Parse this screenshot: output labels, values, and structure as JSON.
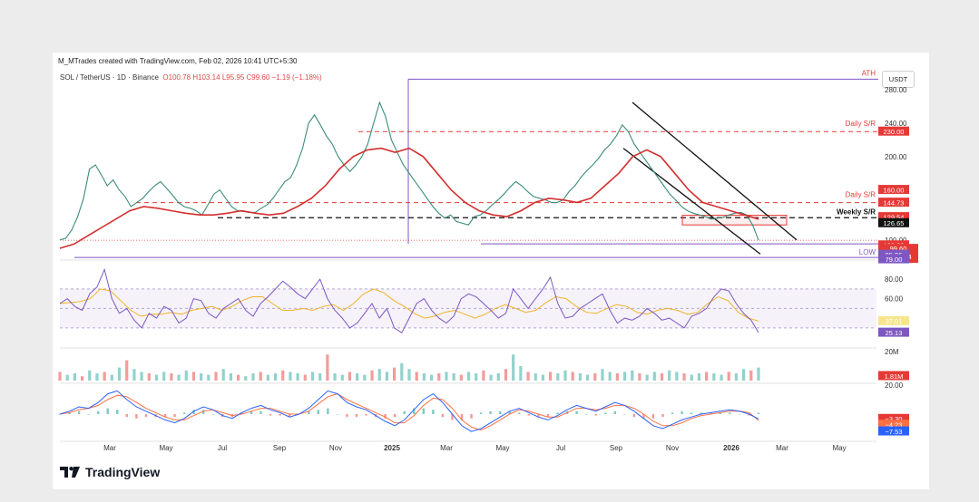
{
  "header": {
    "text": "M_MTrades created with TradingView.com, Feb 02, 2026 10:41 UTC+5:30"
  },
  "legend": {
    "symbol": "SOL / TetherUS · 1D · Binance",
    "open": "O100.78",
    "high": "H103.14",
    "low": "L95.95",
    "close": "C99.60",
    "change": "−1.19 (−1.18%)"
  },
  "currency": "USDT",
  "brand": {
    "name": "TradingView"
  },
  "colors": {
    "red": "#e53935",
    "purple": "#7e57c2",
    "ma": "#d32f2f",
    "dark": "#111111"
  },
  "chart_data": [
    {
      "type": "line",
      "title": "SOL / TetherUS · 1D · Binance",
      "x_labels": [
        "Mar",
        "May",
        "Jul",
        "Sep",
        "Nov",
        "2025",
        "Mar",
        "May",
        "Jul",
        "Sep",
        "Nov",
        "2026",
        "Mar",
        "May"
      ],
      "y_ticks": [
        280,
        240,
        200,
        100
      ],
      "y_tick_labels": [
        "280.00",
        "240.00",
        "200.00",
        "100.00"
      ],
      "ylim": [
        78,
        290
      ],
      "series": [
        {
          "values": [
            100,
            102,
            112,
            128,
            150,
            185,
            190,
            178,
            165,
            172,
            160,
            152,
            140,
            145,
            150,
            158,
            165,
            170,
            162,
            154,
            145,
            140,
            138,
            135,
            130,
            142,
            155,
            160,
            150,
            140,
            135,
            134,
            133,
            133,
            138,
            142,
            150,
            160,
            170,
            175,
            190,
            210,
            240,
            250,
            238,
            225,
            215,
            200,
            190,
            182,
            190,
            200,
            215,
            240,
            265,
            248,
            220,
            205,
            190,
            180,
            170,
            160,
            150,
            140,
            132,
            126,
            130,
            122,
            120,
            118,
            128,
            130,
            135,
            142,
            148,
            155,
            163,
            170,
            165,
            158,
            152,
            150,
            148,
            145,
            145,
            148,
            158,
            165,
            175,
            183,
            190,
            198,
            208,
            215,
            225,
            238,
            230,
            215,
            205,
            195,
            185,
            175,
            165,
            155,
            148,
            140,
            135,
            132,
            130,
            128,
            125,
            126,
            127,
            130,
            132,
            133,
            130,
            118,
            99.6
          ]
        },
        {
          "name": "MA",
          "values": [
            90,
            95,
            105,
            115,
            125,
            135,
            140,
            138,
            135,
            132,
            130,
            130,
            132,
            135,
            132,
            130,
            132,
            140,
            150,
            165,
            185,
            200,
            208,
            210,
            205,
            210,
            200,
            180,
            160,
            145,
            135,
            130,
            128,
            135,
            145,
            150,
            148,
            145,
            150,
            165,
            180,
            200,
            208,
            200,
            180,
            160,
            145,
            140,
            135,
            130,
            125
          ]
        }
      ],
      "levels": [
        {
          "label": "ATH",
          "value": 292.8
        },
        {
          "label": "Daily S/R",
          "value": 230.0
        },
        {
          "label": "Daily S/R",
          "value": 144.73
        },
        {
          "label": "Weekly S/R",
          "value": 126.65
        },
        {
          "label": "LOW",
          "value": 79.0
        }
      ],
      "price_badges": [
        "230.00",
        "160.00",
        "144.73",
        "129.54",
        "126.65",
        "100.00",
        "99.60",
        "18:48:04",
        "95.26",
        "79.00"
      ]
    },
    {
      "type": "line",
      "name": "RSI",
      "y_ticks": [
        80,
        60
      ],
      "y_tick_labels": [
        "80.00",
        "60.00"
      ],
      "ylim": [
        15,
        95
      ],
      "series": [
        {
          "values": [
            55,
            60,
            52,
            48,
            65,
            72,
            90,
            60,
            45,
            50,
            38,
            30,
            45,
            40,
            52,
            48,
            35,
            40,
            60,
            58,
            45,
            40,
            50,
            55,
            60,
            48,
            42,
            55,
            62,
            70,
            78,
            72,
            65,
            60,
            70,
            80,
            60,
            48,
            40,
            30,
            35,
            45,
            55,
            40,
            50,
            30,
            25,
            40,
            55,
            60,
            48,
            40,
            35,
            42,
            60,
            65,
            62,
            55,
            48,
            40,
            45,
            70,
            60,
            50,
            60,
            70,
            82,
            55,
            40,
            42,
            50,
            55,
            60,
            65,
            48,
            35,
            40,
            38,
            42,
            50,
            45,
            38,
            40,
            35,
            30,
            42,
            45,
            50,
            62,
            70,
            68,
            55,
            45,
            38,
            25.13
          ]
        },
        {
          "values": [
            55,
            56,
            57,
            60,
            70,
            68,
            58,
            48,
            42,
            44,
            44,
            46,
            44,
            48,
            50,
            52,
            48,
            52,
            58,
            62,
            62,
            55,
            48,
            48,
            50,
            48,
            52,
            54,
            48,
            55,
            65,
            70,
            66,
            58,
            52,
            45,
            40,
            42,
            46,
            48,
            44,
            40,
            44,
            50,
            54,
            50,
            46,
            48,
            56,
            62,
            60,
            52,
            46,
            45,
            50,
            54,
            52,
            46,
            44,
            48,
            50,
            48,
            44,
            46,
            55,
            62,
            58,
            46,
            40,
            37.01
          ]
        }
      ],
      "badges": [
        "37.01",
        "25.13"
      ]
    },
    {
      "type": "bar",
      "name": "Volume",
      "y_ticks": [
        20
      ],
      "y_tick_labels": [
        "20M"
      ],
      "values": [
        6,
        4,
        5,
        3,
        7,
        5,
        6,
        4,
        9,
        14,
        8,
        6,
        5,
        4,
        6,
        5,
        4,
        7,
        6,
        5,
        4,
        6,
        8,
        5,
        4,
        3,
        5,
        6,
        4,
        5,
        7,
        6,
        5,
        4,
        6,
        5,
        18,
        5,
        4,
        6,
        5,
        4,
        7,
        8,
        6,
        9,
        12,
        8,
        6,
        5,
        4,
        5,
        6,
        5,
        4,
        6,
        5,
        7,
        4,
        5,
        8,
        18,
        10,
        6,
        5,
        4,
        6,
        5,
        7,
        6,
        5,
        4,
        5,
        8,
        6,
        5,
        6,
        7,
        5,
        4,
        6,
        5,
        7,
        6,
        5,
        4,
        5,
        6,
        5,
        4,
        6,
        5,
        8,
        7,
        9
      ],
      "badge": "1.81M"
    },
    {
      "type": "line",
      "name": "MACD",
      "y_ticks": [
        20
      ],
      "y_tick_labels": [
        "20.00"
      ],
      "series": [
        {
          "values": [
            0,
            2,
            5,
            4,
            8,
            14,
            16,
            10,
            5,
            2,
            -1,
            -4,
            -6,
            -3,
            2,
            5,
            3,
            -1,
            -3,
            1,
            4,
            6,
            3,
            1,
            -2,
            0,
            4,
            10,
            16,
            14,
            8,
            5,
            3,
            -1,
            -5,
            -8,
            -4,
            3,
            10,
            14,
            8,
            0,
            -8,
            -12,
            -10,
            -6,
            -2,
            2,
            4,
            1,
            -2,
            -4,
            -1,
            3,
            6,
            4,
            2,
            5,
            8,
            6,
            2,
            -3,
            -8,
            -10,
            -7,
            -4,
            -2,
            0,
            1,
            2,
            3,
            2,
            0,
            -3.3
          ]
        },
        {
          "values": [
            0,
            1,
            3,
            4,
            6,
            10,
            13,
            12,
            8,
            4,
            1,
            -2,
            -4,
            -4,
            -1,
            2,
            3,
            1,
            -1,
            0,
            2,
            4,
            4,
            2,
            0,
            0,
            2,
            7,
            12,
            14,
            10,
            7,
            4,
            1,
            -2,
            -6,
            -6,
            -1,
            6,
            11,
            10,
            4,
            -4,
            -9,
            -11,
            -8,
            -4,
            0,
            3,
            2,
            0,
            -2,
            -2,
            1,
            4,
            4,
            3,
            4,
            6,
            6,
            4,
            0,
            -5,
            -8,
            -8,
            -6,
            -3,
            -1,
            0,
            1,
            2,
            2,
            1,
            -4.23
          ]
        }
      ],
      "badges": [
        "−3.30",
        "−4.23",
        "−7.53"
      ]
    }
  ]
}
